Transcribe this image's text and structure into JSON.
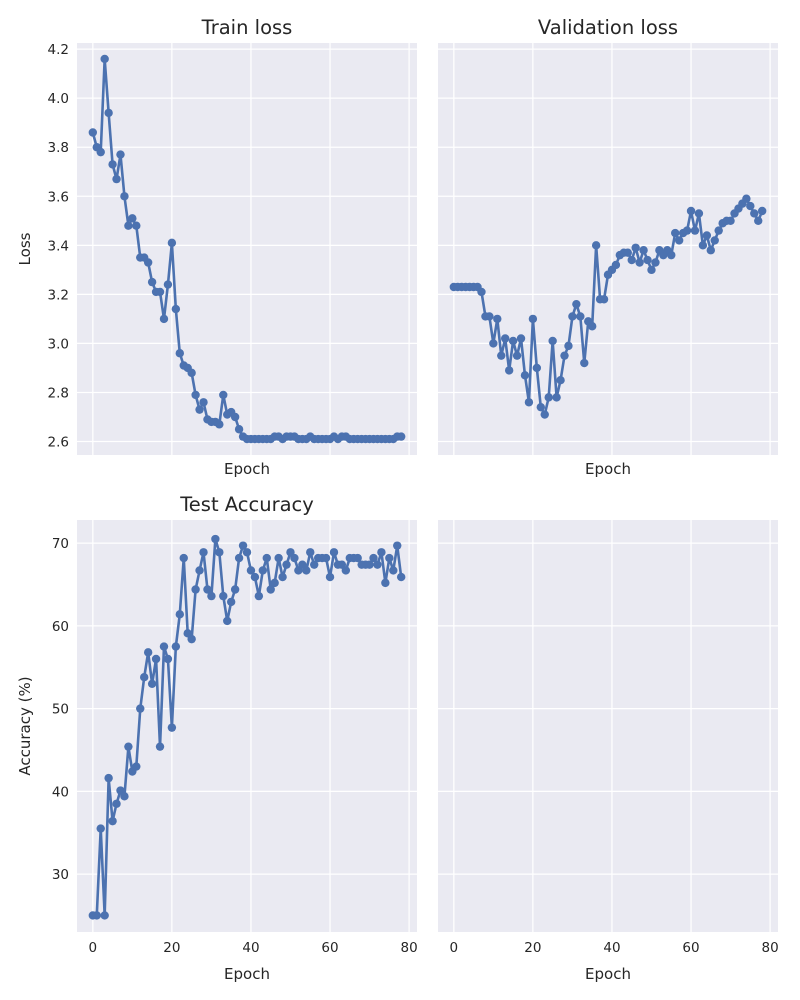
{
  "colors": {
    "series": "#4c72b0",
    "background": "#eaeaf2",
    "grid": "#ffffff",
    "text": "#262626"
  },
  "chart_data": [
    {
      "type": "line",
      "title": "Train loss",
      "xlabel": "Epoch",
      "ylabel": "Loss",
      "xlim": [
        -4,
        82
      ],
      "ylim": [
        2.545,
        4.225
      ],
      "xticks": [
        0,
        20,
        40,
        60,
        80
      ],
      "yticks": [
        2.6,
        2.8,
        3.0,
        3.2,
        3.4,
        3.6,
        3.8,
        4.0,
        4.2
      ],
      "ytick_labels": [
        "2.6",
        "2.8",
        "3.0",
        "3.2",
        "3.4",
        "3.6",
        "3.8",
        "4.0",
        "4.2"
      ],
      "show_xtick_labels": false,
      "show_ytick_labels": true,
      "grid": true,
      "x": [
        0,
        1,
        2,
        3,
        4,
        5,
        6,
        7,
        8,
        9,
        10,
        11,
        12,
        13,
        14,
        15,
        16,
        17,
        18,
        19,
        20,
        21,
        22,
        23,
        24,
        25,
        26,
        27,
        28,
        29,
        30,
        31,
        32,
        33,
        34,
        35,
        36,
        37,
        38,
        39,
        40,
        41,
        42,
        43,
        44,
        45,
        46,
        47,
        48,
        49,
        50,
        51,
        52,
        53,
        54,
        55,
        56,
        57,
        58,
        59,
        60,
        61,
        62,
        63,
        64,
        65,
        66,
        67,
        68,
        69,
        70,
        71,
        72,
        73,
        74,
        75,
        76,
        77,
        78
      ],
      "series": [
        {
          "values": [
            3.86,
            3.8,
            3.78,
            4.16,
            3.94,
            3.73,
            3.67,
            3.77,
            3.6,
            3.48,
            3.51,
            3.48,
            3.35,
            3.35,
            3.33,
            3.25,
            3.21,
            3.21,
            3.1,
            3.24,
            3.41,
            3.14,
            2.96,
            2.91,
            2.9,
            2.88,
            2.79,
            2.73,
            2.76,
            2.69,
            2.68,
            2.68,
            2.67,
            2.79,
            2.71,
            2.72,
            2.7,
            2.65,
            2.62,
            2.61,
            2.61,
            2.61,
            2.61,
            2.61,
            2.61,
            2.61,
            2.62,
            2.62,
            2.61,
            2.62,
            2.62,
            2.62,
            2.61,
            2.61,
            2.61,
            2.62,
            2.61,
            2.61,
            2.61,
            2.61,
            2.61,
            2.62,
            2.61,
            2.62,
            2.62,
            2.61,
            2.61,
            2.61,
            2.61,
            2.61,
            2.61,
            2.61,
            2.61,
            2.61,
            2.61,
            2.61,
            2.61,
            2.62,
            2.62
          ]
        }
      ]
    },
    {
      "type": "line",
      "title": "Validation loss",
      "xlabel": "Epoch",
      "ylabel": "",
      "xlim": [
        -4,
        82
      ],
      "ylim": [
        2.545,
        4.225
      ],
      "xticks": [
        0,
        20,
        40,
        60,
        80
      ],
      "yticks": [
        2.6,
        2.8,
        3.0,
        3.2,
        3.4,
        3.6,
        3.8,
        4.0,
        4.2
      ],
      "show_xtick_labels": false,
      "show_ytick_labels": false,
      "grid": true,
      "x": [
        0,
        1,
        2,
        3,
        4,
        5,
        6,
        7,
        8,
        9,
        10,
        11,
        12,
        13,
        14,
        15,
        16,
        17,
        18,
        19,
        20,
        21,
        22,
        23,
        24,
        25,
        26,
        27,
        28,
        29,
        30,
        31,
        32,
        33,
        34,
        35,
        36,
        37,
        38,
        39,
        40,
        41,
        42,
        43,
        44,
        45,
        46,
        47,
        48,
        49,
        50,
        51,
        52,
        53,
        54,
        55,
        56,
        57,
        58,
        59,
        60,
        61,
        62,
        63,
        64,
        65,
        66,
        67,
        68,
        69,
        70,
        71,
        72,
        73,
        74,
        75,
        76,
        77,
        78
      ],
      "series": [
        {
          "values": [
            3.23,
            3.23,
            3.23,
            3.23,
            3.23,
            3.23,
            3.23,
            3.21,
            3.11,
            3.11,
            3.0,
            3.1,
            2.95,
            3.02,
            2.89,
            3.01,
            2.95,
            3.02,
            2.87,
            2.76,
            3.1,
            2.9,
            2.74,
            2.71,
            2.78,
            3.01,
            2.78,
            2.85,
            2.95,
            2.99,
            3.11,
            3.16,
            3.11,
            2.92,
            3.09,
            3.07,
            3.4,
            3.18,
            3.18,
            3.28,
            3.3,
            3.32,
            3.36,
            3.37,
            3.37,
            3.34,
            3.39,
            3.33,
            3.38,
            3.34,
            3.3,
            3.33,
            3.38,
            3.36,
            3.38,
            3.36,
            3.45,
            3.42,
            3.45,
            3.46,
            3.54,
            3.46,
            3.53,
            3.4,
            3.44,
            3.38,
            3.42,
            3.46,
            3.49,
            3.5,
            3.5,
            3.53,
            3.55,
            3.57,
            3.59,
            3.56,
            3.53,
            3.5,
            3.54
          ]
        }
      ]
    },
    {
      "type": "line",
      "title": "Test Accuracy",
      "xlabel": "Epoch",
      "ylabel": "Accuracy (%)",
      "xlim": [
        -4,
        82
      ],
      "ylim": [
        23,
        72.8
      ],
      "xticks": [
        0,
        20,
        40,
        60,
        80
      ],
      "xtick_labels": [
        "0",
        "20",
        "40",
        "60",
        "80"
      ],
      "yticks": [
        30,
        40,
        50,
        60,
        70
      ],
      "ytick_labels": [
        "30",
        "40",
        "50",
        "60",
        "70"
      ],
      "show_xtick_labels": true,
      "show_ytick_labels": true,
      "grid": true,
      "x": [
        0,
        1,
        2,
        3,
        4,
        5,
        6,
        7,
        8,
        9,
        10,
        11,
        12,
        13,
        14,
        15,
        16,
        17,
        18,
        19,
        20,
        21,
        22,
        23,
        24,
        25,
        26,
        27,
        28,
        29,
        30,
        31,
        32,
        33,
        34,
        35,
        36,
        37,
        38,
        39,
        40,
        41,
        42,
        43,
        44,
        45,
        46,
        47,
        48,
        49,
        50,
        51,
        52,
        53,
        54,
        55,
        56,
        57,
        58,
        59,
        60,
        61,
        62,
        63,
        64,
        65,
        66,
        67,
        68,
        69,
        70,
        71,
        72,
        73,
        74,
        75,
        76,
        77,
        78
      ],
      "series": [
        {
          "values": [
            25.0,
            25.0,
            35.5,
            25.0,
            41.6,
            36.4,
            38.5,
            40.1,
            39.4,
            45.4,
            42.4,
            43.0,
            50.0,
            53.8,
            56.8,
            53.0,
            56.0,
            45.4,
            57.5,
            56.0,
            47.7,
            57.5,
            61.4,
            68.2,
            59.1,
            58.4,
            64.4,
            66.7,
            68.9,
            64.4,
            63.6,
            70.5,
            68.9,
            63.6,
            60.6,
            62.9,
            64.4,
            68.2,
            69.7,
            68.9,
            66.7,
            65.9,
            63.6,
            66.7,
            68.2,
            64.4,
            65.2,
            68.2,
            65.9,
            67.4,
            68.9,
            68.2,
            66.7,
            67.4,
            66.7,
            68.9,
            67.4,
            68.2,
            68.2,
            68.2,
            65.9,
            68.9,
            67.4,
            67.4,
            66.7,
            68.2,
            68.2,
            68.2,
            67.4,
            67.4,
            67.4,
            68.2,
            67.4,
            68.9,
            65.2,
            68.2,
            66.7,
            69.7,
            65.9
          ]
        }
      ]
    },
    {
      "type": "line",
      "title": "",
      "xlabel": "Epoch",
      "ylabel": "",
      "xlim": [
        -4,
        82
      ],
      "ylim": [
        23,
        72.8
      ],
      "xticks": [
        0,
        20,
        40,
        60,
        80
      ],
      "xtick_labels": [
        "0",
        "20",
        "40",
        "60",
        "80"
      ],
      "yticks": [
        30,
        40,
        50,
        60,
        70
      ],
      "show_xtick_labels": true,
      "show_ytick_labels": false,
      "grid": true,
      "x": [],
      "series": []
    }
  ]
}
